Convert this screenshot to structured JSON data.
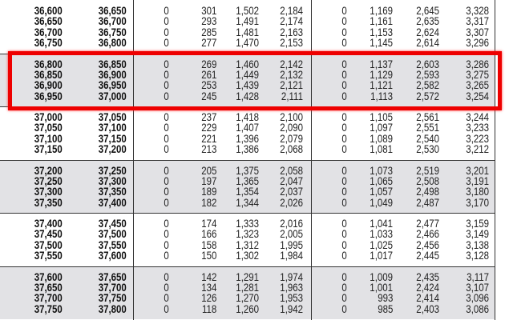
{
  "table": {
    "row_groups": [
      [
        [
          "36,600",
          "36,650",
          "0",
          "301",
          "1,502",
          "2,184",
          "0",
          "1,169",
          "2,645",
          "3,328"
        ],
        [
          "36,650",
          "36,700",
          "0",
          "293",
          "1,491",
          "2,174",
          "0",
          "1,161",
          "2,635",
          "3,317"
        ],
        [
          "36,700",
          "36,750",
          "0",
          "285",
          "1,481",
          "2,163",
          "0",
          "1,153",
          "2,624",
          "3,307"
        ],
        [
          "36,750",
          "36,800",
          "0",
          "277",
          "1,470",
          "2,153",
          "0",
          "1,145",
          "2,614",
          "3,296"
        ]
      ],
      [
        [
          "36,800",
          "36,850",
          "0",
          "269",
          "1,460",
          "2,142",
          "0",
          "1,137",
          "2,603",
          "3,286"
        ],
        [
          "36,850",
          "36,900",
          "0",
          "261",
          "1,449",
          "2,132",
          "0",
          "1,129",
          "2,593",
          "3,275"
        ],
        [
          "36,900",
          "36,950",
          "0",
          "253",
          "1,439",
          "2,121",
          "0",
          "1,121",
          "2,582",
          "3,265"
        ],
        [
          "36,950",
          "37,000",
          "0",
          "245",
          "1,428",
          "2,111",
          "0",
          "1,113",
          "2,572",
          "3,254"
        ]
      ],
      [
        [
          "37,000",
          "37,050",
          "0",
          "237",
          "1,418",
          "2,100",
          "0",
          "1,105",
          "2,561",
          "3,244"
        ],
        [
          "37,050",
          "37,100",
          "0",
          "229",
          "1,407",
          "2,090",
          "0",
          "1,097",
          "2,551",
          "3,233"
        ],
        [
          "37,100",
          "37,150",
          "0",
          "221",
          "1,396",
          "2,079",
          "0",
          "1,089",
          "2,540",
          "3,223"
        ],
        [
          "37,150",
          "37,200",
          "0",
          "213",
          "1,386",
          "2,068",
          "0",
          "1,081",
          "2,530",
          "3,212"
        ]
      ],
      [
        [
          "37,200",
          "37,250",
          "0",
          "205",
          "1,375",
          "2,058",
          "0",
          "1,073",
          "2,519",
          "3,201"
        ],
        [
          "37,250",
          "37,300",
          "0",
          "197",
          "1,365",
          "2,047",
          "0",
          "1,065",
          "2,508",
          "3,191"
        ],
        [
          "37,300",
          "37,350",
          "0",
          "189",
          "1,354",
          "2,037",
          "0",
          "1,057",
          "2,498",
          "3,180"
        ],
        [
          "37,350",
          "37,400",
          "0",
          "182",
          "1,344",
          "2,026",
          "0",
          "1,049",
          "2,487",
          "3,170"
        ]
      ],
      [
        [
          "37,400",
          "37,450",
          "0",
          "174",
          "1,333",
          "2,016",
          "0",
          "1,041",
          "2,477",
          "3,159"
        ],
        [
          "37,450",
          "37,500",
          "0",
          "166",
          "1,323",
          "2,005",
          "0",
          "1,033",
          "2,466",
          "3,149"
        ],
        [
          "37,500",
          "37,550",
          "0",
          "158",
          "1,312",
          "1,995",
          "0",
          "1,025",
          "2,456",
          "3,138"
        ],
        [
          "37,550",
          "37,600",
          "0",
          "150",
          "1,302",
          "1,984",
          "0",
          "1,017",
          "2,445",
          "3,128"
        ]
      ],
      [
        [
          "37,600",
          "37,650",
          "0",
          "142",
          "1,291",
          "1,974",
          "0",
          "1,009",
          "2,435",
          "3,117"
        ],
        [
          "37,650",
          "37,700",
          "0",
          "134",
          "1,281",
          "1,963",
          "0",
          "1,001",
          "2,424",
          "3,107"
        ],
        [
          "37,700",
          "37,750",
          "0",
          "126",
          "1,270",
          "1,953",
          "0",
          "993",
          "2,414",
          "3,096"
        ],
        [
          "37,750",
          "37,800",
          "0",
          "118",
          "1,260",
          "1,942",
          "0",
          "985",
          "2,403",
          "3,086"
        ]
      ]
    ],
    "highlighted_group": 1,
    "highlight_color": "#ee0000",
    "shade_color": "#e2e2e5"
  }
}
